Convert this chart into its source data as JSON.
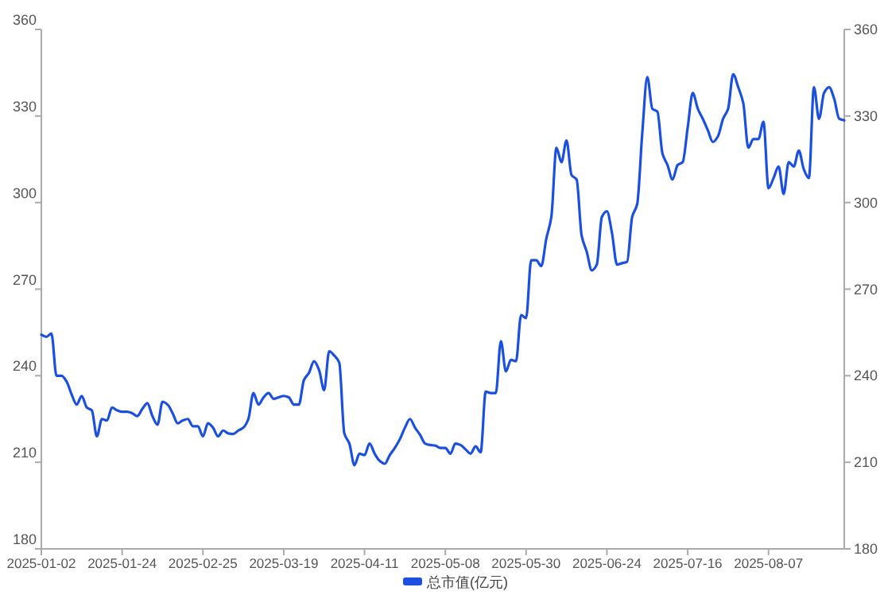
{
  "chart_data": {
    "type": "line",
    "categories": [
      "2025-01-02",
      null,
      null,
      null,
      null,
      null,
      null,
      null,
      null,
      null,
      null,
      null,
      null,
      null,
      null,
      null,
      "2025-01-24",
      null,
      null,
      null,
      null,
      null,
      null,
      null,
      null,
      null,
      null,
      null,
      null,
      null,
      null,
      null,
      "2025-02-25",
      null,
      null,
      null,
      null,
      null,
      null,
      null,
      null,
      null,
      null,
      null,
      null,
      null,
      null,
      null,
      "2025-03-19",
      null,
      null,
      null,
      null,
      null,
      null,
      null,
      null,
      null,
      null,
      null,
      null,
      null,
      null,
      null,
      "2025-04-11",
      null,
      null,
      null,
      null,
      null,
      null,
      null,
      null,
      null,
      null,
      null,
      null,
      null,
      null,
      null,
      "2025-05-08",
      null,
      null,
      null,
      null,
      null,
      null,
      null,
      null,
      null,
      null,
      null,
      null,
      null,
      null,
      null,
      "2025-05-30",
      null,
      null,
      null,
      null,
      null,
      null,
      null,
      null,
      null,
      null,
      null,
      null,
      null,
      null,
      null,
      "2025-06-24",
      null,
      null,
      null,
      null,
      null,
      null,
      null,
      null,
      null,
      null,
      null,
      null,
      null,
      null,
      null,
      "2025-07-16",
      null,
      null,
      null,
      null,
      null,
      null,
      null,
      null,
      null,
      null,
      null,
      null,
      null,
      null,
      null,
      "2025-08-07",
      null,
      null,
      null,
      null,
      null,
      null,
      null,
      null,
      null,
      null,
      null,
      null,
      null,
      null,
      null
    ],
    "series": [
      {
        "name": "总市值(亿元)",
        "color": "#1a4fe0",
        "values": [
          254.2,
          253.5,
          254.6,
          240,
          240,
          238,
          233.5,
          230,
          233,
          229,
          228,
          219,
          225,
          224.5,
          229,
          228,
          227.5,
          227.5,
          227,
          226,
          228.5,
          230.5,
          226,
          223,
          231,
          230,
          227,
          223.5,
          224.5,
          225,
          222.5,
          222.5,
          219,
          223.5,
          222,
          219,
          221,
          220,
          219.8,
          221,
          222,
          225,
          234,
          230,
          232.5,
          234,
          232,
          232.5,
          233,
          232.5,
          230,
          230,
          238.5,
          241,
          245,
          242,
          235,
          248.5,
          247,
          244.5,
          220,
          216.5,
          209,
          213,
          212.5,
          216.5,
          213,
          210.5,
          209.5,
          212.5,
          215,
          218,
          222,
          225,
          222,
          219.5,
          216.5,
          216,
          215.8,
          215,
          215,
          213,
          216.5,
          216,
          214.5,
          213,
          215.5,
          213.5,
          234.5,
          234,
          234,
          252,
          241.5,
          245.5,
          245,
          261,
          260,
          280,
          280,
          278,
          287.5,
          295,
          319,
          314,
          321.5,
          309.5,
          308,
          288.5,
          283,
          276.5,
          278.5,
          295,
          297,
          289.5,
          278.5,
          279,
          279.5,
          295,
          299.5,
          324,
          343.5,
          332.5,
          331.5,
          317,
          313,
          308,
          313,
          314,
          326,
          338,
          332.5,
          329,
          325,
          321,
          323,
          329,
          332.5,
          344.5,
          340,
          334.5,
          319,
          322,
          322,
          328,
          305,
          308.5,
          312.5,
          303,
          314,
          312.5,
          318,
          311.5,
          308.5,
          340,
          329,
          338,
          340,
          336,
          329,
          328.5
        ]
      }
    ],
    "ylim": [
      180,
      360
    ],
    "yticks": [
      180,
      210,
      240,
      270,
      300,
      330,
      360
    ],
    "y2lim": [
      180,
      360
    ],
    "y2ticks": [
      180,
      210,
      240,
      270,
      300,
      330,
      360
    ],
    "legend": "bottom"
  }
}
